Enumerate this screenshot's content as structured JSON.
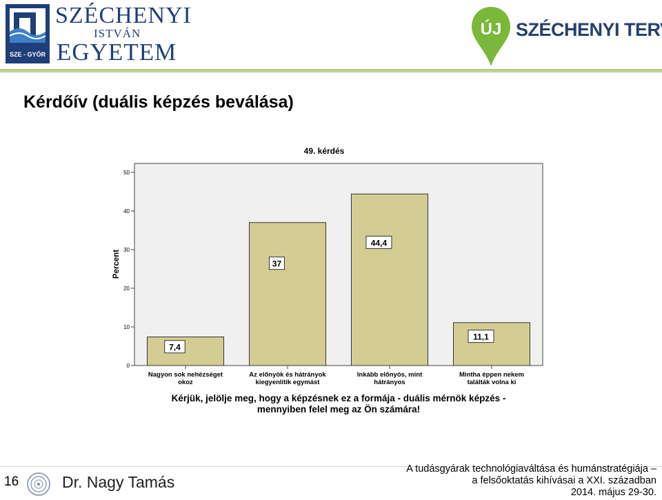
{
  "header": {
    "university_line1": "SZÉCHENYI",
    "university_line2": "ISTVÁN",
    "university_line3": "EGYETEM",
    "university_badge": "SZE - GYŐR",
    "program_badge": "ÚJ",
    "program_name": "SZÉCHENYI TERV",
    "colors": {
      "uni_blue": "#1e3f78",
      "terv_green": "#7ab83a",
      "terv_navy": "#24406e"
    }
  },
  "slide": {
    "title": "Kérdőív (duális képzés beválása)"
  },
  "chart_data": {
    "type": "bar",
    "title": "49. kérdés",
    "ylabel": "Percent",
    "xlabel_line1": "Kérjük, jelölje meg, hogy a képzésnek ez a formája - duális mérnök képzés -",
    "xlabel_line2": "mennyiben felel meg az Ön számára!",
    "categories": [
      [
        "Nagyon sok nehézséget",
        "okoz"
      ],
      [
        "Az előnyök és hátrányok",
        "kiegyenlítik egymást"
      ],
      [
        "Inkább előnyös, mint",
        "hátrányos"
      ],
      [
        "Mintha éppen nekem",
        "találták volna ki"
      ]
    ],
    "values": [
      7.4,
      37,
      44.4,
      11.1
    ],
    "value_labels": [
      "7,4",
      "37",
      "44,4",
      "11,1"
    ],
    "yticks": [
      "0",
      "10",
      "20",
      "30",
      "40",
      "50"
    ],
    "ylim": [
      0,
      52.3
    ],
    "grid": false,
    "colors": {
      "bar": "#d3cd94",
      "plot_bg": "#f0f0f0"
    }
  },
  "footer": {
    "page_number": "16",
    "author": "Dr. Nagy Tamás",
    "conference_line1": "A tudásgyárak technológiaváltása és humánstratégiája –",
    "conference_line2": "a felsőoktatás kihívásai a XXI. században",
    "conference_date": "2014. május 29-30."
  }
}
